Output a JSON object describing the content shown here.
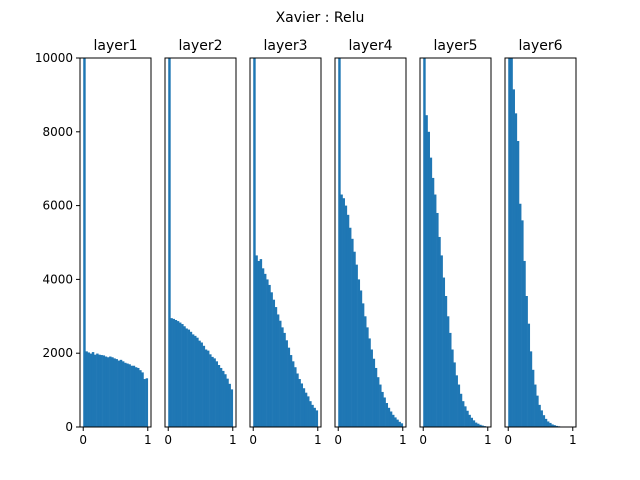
{
  "title": "Xavier : Relu",
  "chart_data": {
    "type": "bar",
    "title": "Xavier : Relu",
    "xlabel": "",
    "ylabel": "",
    "ylim": [
      0,
      10000
    ],
    "xlim": [
      -0.05,
      1.05
    ],
    "yticks": [
      "0",
      "2000",
      "4000",
      "6000",
      "8000",
      "10000"
    ],
    "xticks": [
      "0",
      "1"
    ],
    "grid": false,
    "bins": 30,
    "bar_color": "#1f77b4",
    "panels": [
      {
        "title": "layer1",
        "values": [
          10000,
          2050,
          2020,
          1990,
          2030,
          1960,
          1990,
          1960,
          1950,
          1940,
          1910,
          1890,
          1910,
          1890,
          1860,
          1840,
          1800,
          1820,
          1780,
          1740,
          1720,
          1700,
          1660,
          1660,
          1620,
          1600,
          1540,
          1480,
          1300,
          1320
        ]
      },
      {
        "title": "layer2",
        "values": [
          10000,
          2950,
          2930,
          2900,
          2870,
          2830,
          2790,
          2730,
          2670,
          2640,
          2580,
          2510,
          2470,
          2420,
          2340,
          2290,
          2200,
          2100,
          2070,
          1970,
          1900,
          1860,
          1780,
          1680,
          1600,
          1520,
          1430,
          1310,
          1170,
          1020
        ]
      },
      {
        "title": "layer3",
        "values": [
          10000,
          4650,
          4500,
          4550,
          4300,
          4150,
          4000,
          3850,
          3650,
          3450,
          3250,
          3050,
          2880,
          2700,
          2550,
          2350,
          2150,
          1950,
          1780,
          1620,
          1450,
          1300,
          1180,
          1050,
          930,
          830,
          700,
          600,
          520,
          450
        ]
      },
      {
        "title": "layer4",
        "values": [
          10000,
          6300,
          6200,
          6000,
          5750,
          5400,
          5100,
          4750,
          4400,
          4000,
          3700,
          3350,
          3000,
          2700,
          2400,
          2100,
          1850,
          1600,
          1350,
          1150,
          950,
          800,
          650,
          520,
          420,
          330,
          260,
          200,
          140,
          100
        ]
      },
      {
        "title": "layer5",
        "values": [
          10000,
          8450,
          8000,
          7300,
          6750,
          6300,
          5800,
          5150,
          4650,
          4050,
          3550,
          3000,
          2550,
          2100,
          1750,
          1400,
          1150,
          900,
          700,
          560,
          440,
          330,
          250,
          180,
          120,
          90,
          60,
          40,
          25,
          15
        ]
      },
      {
        "title": "layer6",
        "values": [
          10000,
          10000,
          9150,
          8500,
          7750,
          6050,
          5600,
          4500,
          3550,
          2800,
          2050,
          1550,
          1150,
          850,
          600,
          450,
          320,
          220,
          150,
          110,
          70,
          50,
          30,
          20,
          12,
          8,
          5,
          3,
          2,
          1
        ]
      }
    ]
  }
}
